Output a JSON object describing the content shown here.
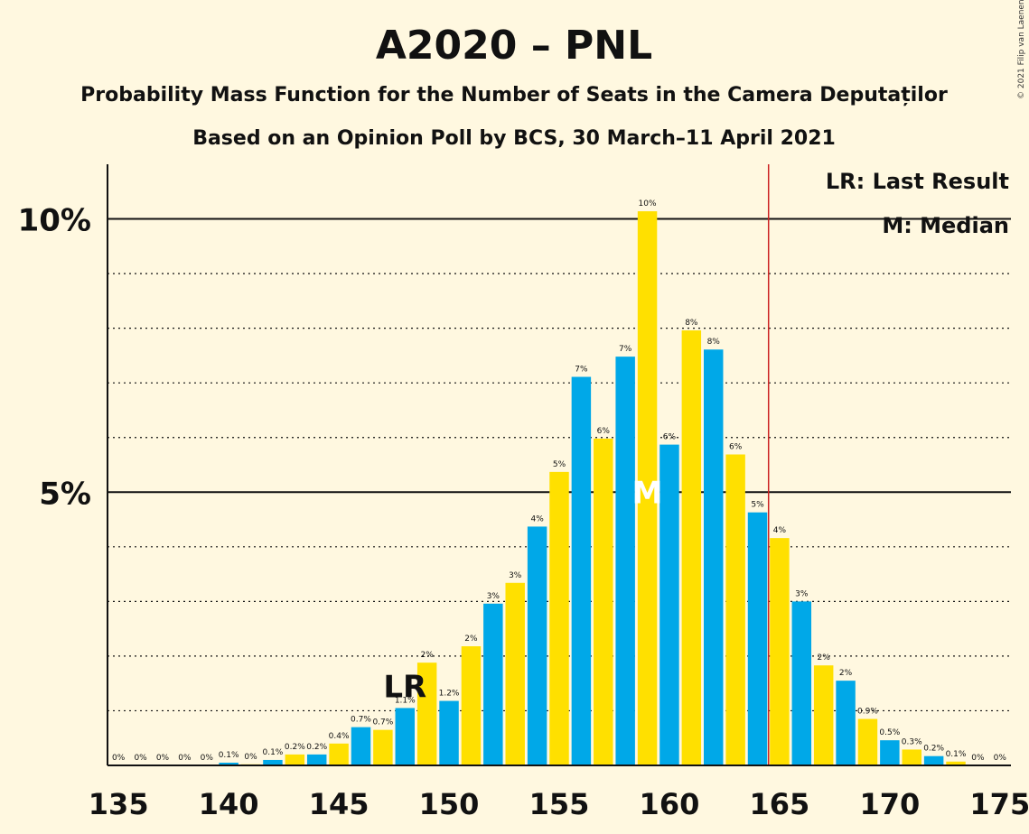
{
  "header": {
    "title": "A2020 – PNL",
    "subtitle": "Probability Mass Function for the Number of Seats in the Camera Deputaților",
    "subtitle2": "Based on an Opinion Poll by BCS, 30 March–11 April 2021",
    "copyright": "© 2021 Filip van Laenen"
  },
  "legend": {
    "lr": "LR: Last Result",
    "m": "M: Median"
  },
  "markers": {
    "lr_label": "LR",
    "m_label": "M"
  },
  "colors": {
    "background": "#fff8e0",
    "blue": "#00a8e8",
    "yellow": "#ffe000",
    "majority_line": "#cc2222",
    "text": "#111111"
  },
  "chart_data": {
    "type": "bar",
    "x_range": [
      135,
      175
    ],
    "ylim": [
      0,
      0.11
    ],
    "y_ticks": [
      {
        "value": 0.05,
        "label": "5%"
      },
      {
        "value": 0.1,
        "label": "10%"
      }
    ],
    "x_ticks": [
      135,
      140,
      145,
      150,
      155,
      160,
      165,
      170,
      175
    ],
    "last_result": 148,
    "median": 159,
    "majority": 164.5,
    "grid": "dotted at every 1%, solid at 5% and 10%",
    "legend_position": "top-right",
    "x": [
      135,
      136,
      137,
      138,
      139,
      140,
      141,
      142,
      143,
      144,
      145,
      146,
      147,
      148,
      149,
      150,
      151,
      152,
      153,
      154,
      155,
      156,
      157,
      158,
      159,
      160,
      161,
      162,
      163,
      164,
      165,
      166,
      167,
      168,
      169,
      170,
      171,
      172,
      173,
      174,
      175
    ],
    "values": [
      0,
      0,
      0,
      0,
      0,
      0.0005,
      0.0002,
      0.001,
      0.002,
      0.002,
      0.004,
      0.007,
      0.0065,
      0.0105,
      0.0188,
      0.0118,
      0.0218,
      0.0296,
      0.0334,
      0.0437,
      0.0537,
      0.0711,
      0.0598,
      0.0748,
      0.1014,
      0.0587,
      0.0796,
      0.0761,
      0.0569,
      0.0463,
      0.0416,
      0.03,
      0.0183,
      0.0155,
      0.0085,
      0.0046,
      0.0029,
      0.0017,
      0.0007,
      0,
      0
    ],
    "labels": [
      "0%",
      "0%",
      "0%",
      "0%",
      "0%",
      "0.1%",
      "0%",
      "0.1%",
      "0.2%",
      "0.2%",
      "0.4%",
      "0.7%",
      "0.7%",
      "1.1%",
      "2%",
      "1.2%",
      "2%",
      "3%",
      "3%",
      "4%",
      "5%",
      "7%",
      "6%",
      "7%",
      "10%",
      "6%",
      "8%",
      "8%",
      "6%",
      "5%",
      "4%",
      "3%",
      "2%",
      "2%",
      "0.9%",
      "0.5%",
      "0.3%",
      "0.2%",
      "0.1%",
      "0%",
      "0%"
    ]
  }
}
